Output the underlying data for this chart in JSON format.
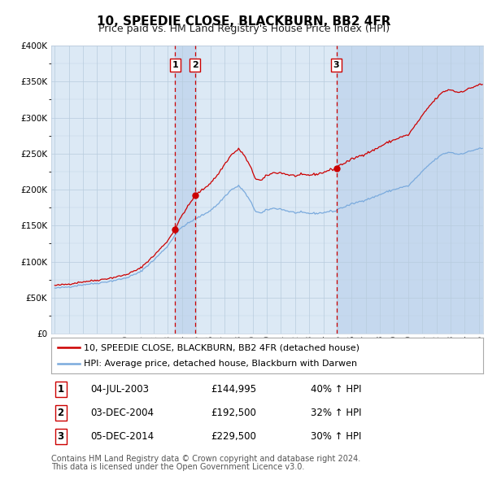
{
  "title": "10, SPEEDIE CLOSE, BLACKBURN, BB2 4FR",
  "subtitle": "Price paid vs. HM Land Registry's House Price Index (HPI)",
  "legend_line1": "10, SPEEDIE CLOSE, BLACKBURN, BB2 4FR (detached house)",
  "legend_line2": "HPI: Average price, detached house, Blackburn with Darwen",
  "footer1": "Contains HM Land Registry data © Crown copyright and database right 2024.",
  "footer2": "This data is licensed under the Open Government Licence v3.0.",
  "transactions": [
    {
      "num": 1,
      "date": "04-JUL-2003",
      "price": 144995,
      "pct": "40%",
      "dir": "↑"
    },
    {
      "num": 2,
      "date": "03-DEC-2004",
      "price": 192500,
      "pct": "32%",
      "dir": "↑"
    },
    {
      "num": 3,
      "date": "05-DEC-2014",
      "price": 229500,
      "pct": "30%",
      "dir": "↑"
    }
  ],
  "sale_dates_decimal": [
    2003.505,
    2004.921,
    2014.921
  ],
  "sale_prices": [
    144995,
    192500,
    229500
  ],
  "vline1_x": 2003.505,
  "vline2_x": 2004.921,
  "vline3_x": 2014.921,
  "shaded_region1_start": 2003.505,
  "shaded_region1_end": 2004.921,
  "shaded_region2_start": 2014.921,
  "shaded_region2_end": 2025.5,
  "ylim": [
    0,
    400000
  ],
  "xlim_start": 1994.75,
  "xlim_end": 2025.3,
  "plot_bg_color": "#dce9f5",
  "shaded_color": "#c5d8ee",
  "red_line_color": "#cc0000",
  "blue_line_color": "#7aaadd",
  "vline_color": "#cc0000",
  "grid_color": "#b8ccdd",
  "title_fontsize": 11,
  "subtitle_fontsize": 9,
  "tick_fontsize": 7.5,
  "legend_fontsize": 8,
  "table_fontsize": 8.5,
  "footer_fontsize": 7
}
